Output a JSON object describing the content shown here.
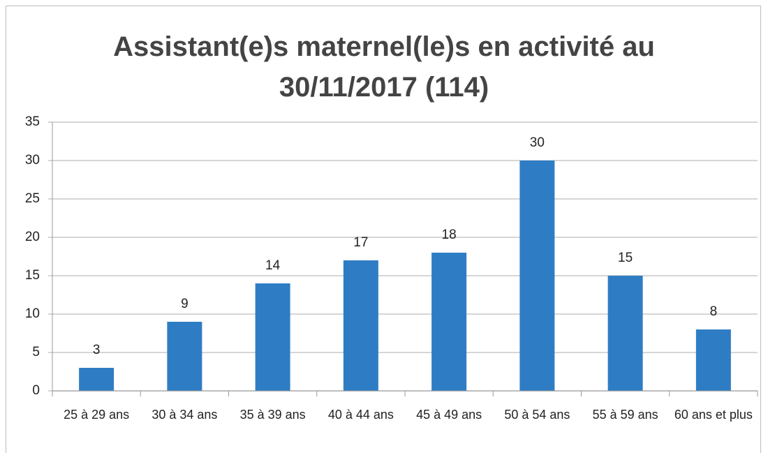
{
  "chart_data": {
    "type": "bar",
    "title": "Assistant(e)s maternel(le)s en activité au 30/11/2017 (114)",
    "categories": [
      "25 à 29 ans",
      "30 à 34 ans",
      "35 à 39 ans",
      "40 à 44 ans",
      "45 à 49 ans",
      "50 à 54 ans",
      "55 à 59 ans",
      "60 ans et plus"
    ],
    "values": [
      3,
      9,
      14,
      17,
      18,
      30,
      15,
      8
    ],
    "color": "#2e7dc4",
    "ylim": [
      0,
      35
    ],
    "yticks": [
      0,
      5,
      10,
      15,
      20,
      25,
      30,
      35
    ],
    "grid": true
  }
}
